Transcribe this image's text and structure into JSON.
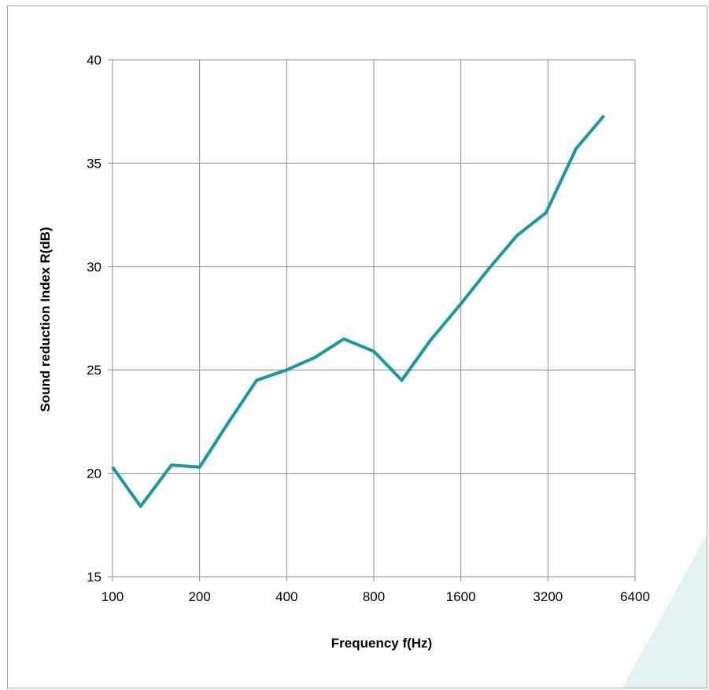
{
  "chart_data": {
    "type": "line",
    "title": "",
    "xlabel": "Frequency f(Hz)",
    "ylabel": "Sound reduction Index R(dB)",
    "x_scale": "log2",
    "xlim": [
      100,
      6400
    ],
    "ylim": [
      15,
      40
    ],
    "x_ticks": [
      100,
      200,
      400,
      800,
      1600,
      3200,
      6400
    ],
    "y_ticks": [
      15,
      20,
      25,
      30,
      35,
      40
    ],
    "grid": true,
    "legend": "none",
    "line_color": "#1a97a3",
    "decor_color": "#e3f2f3",
    "series": [
      {
        "x": [
          100,
          125,
          160,
          200,
          250,
          315,
          400,
          500,
          630,
          800,
          1000,
          1250,
          1600,
          2000,
          2500,
          3150,
          4000,
          5000
        ],
        "y": [
          20.3,
          18.4,
          20.4,
          20.3,
          22.4,
          24.5,
          25.0,
          25.6,
          26.5,
          25.9,
          24.5,
          26.4,
          28.2,
          29.9,
          31.5,
          32.6,
          35.7,
          37.3
        ]
      }
    ]
  }
}
